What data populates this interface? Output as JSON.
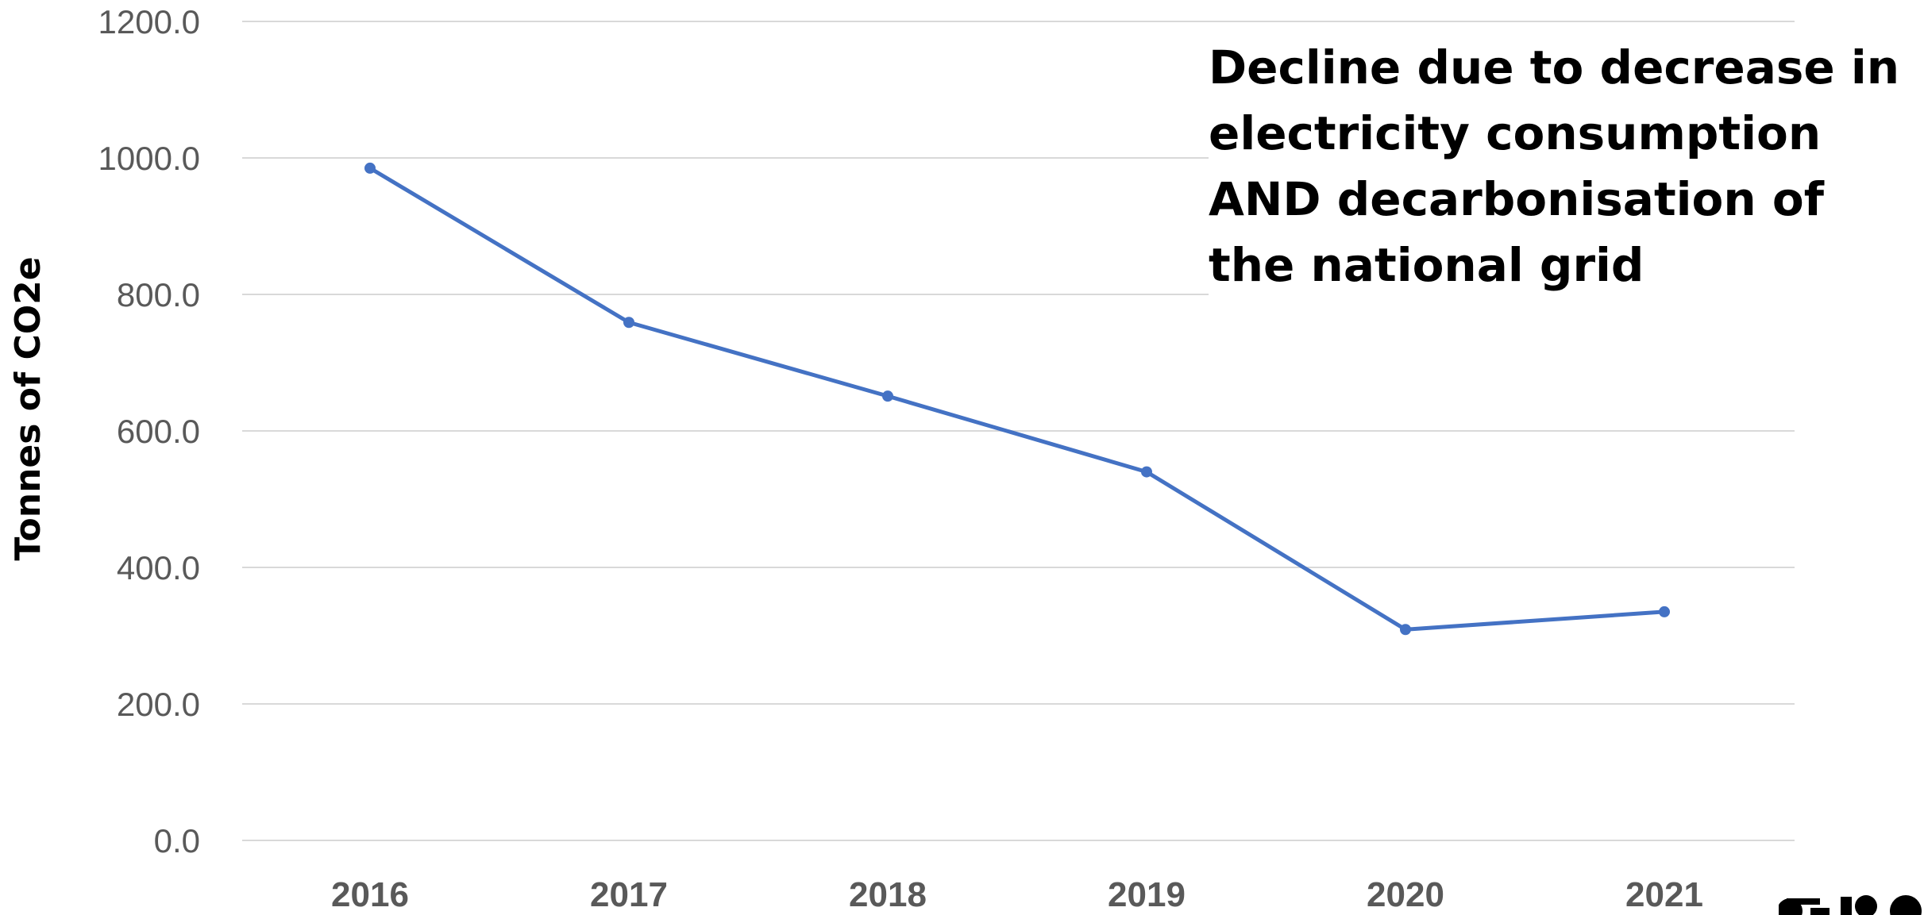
{
  "chart_data": {
    "type": "line",
    "categories": [
      "2016",
      "2017",
      "2018",
      "2019",
      "2020",
      "2021"
    ],
    "series": [
      {
        "values": [
          985,
          759,
          651,
          540,
          309,
          335
        ],
        "color": "#4472C4"
      }
    ],
    "ylabel": "Tonnes of CO2e",
    "xlabel": "",
    "ylim": [
      0,
      1200
    ],
    "yticks": [
      "0.0",
      "200.0",
      "400.0",
      "600.0",
      "800.0",
      "1000.0",
      "1200.0"
    ],
    "grid": true,
    "gridColor": "#d9d9d9",
    "annotation": {
      "lines": [
        "Decline due to decrease in",
        "electricity consumption",
        "AND decarbonisation of",
        "the national grid"
      ]
    }
  },
  "logo": {
    "name": "partial-logo"
  }
}
